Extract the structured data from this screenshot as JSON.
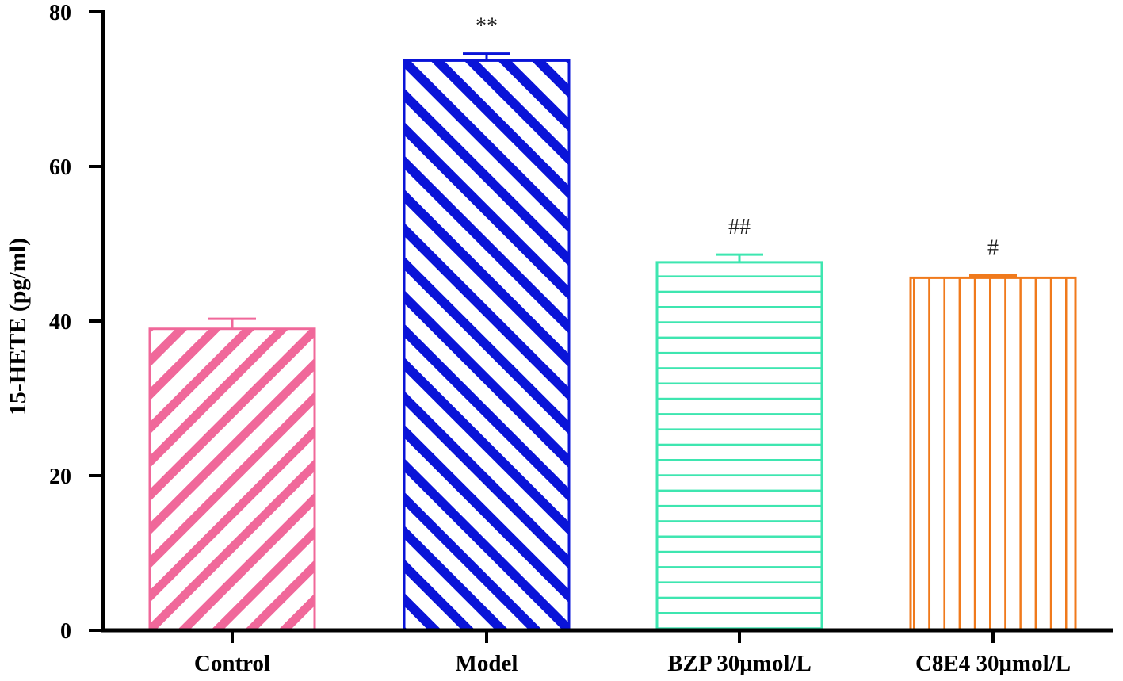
{
  "chart_data": {
    "type": "bar",
    "categories": [
      "Control",
      "Model",
      "BZP 30μmol/L",
      "C8E4 30μmol/L"
    ],
    "values": [
      39.0,
      73.7,
      47.6,
      45.6
    ],
    "errors": [
      1.3,
      0.9,
      1.0,
      0.3
    ],
    "annotations": [
      "",
      "**",
      "##",
      "#"
    ],
    "colors": [
      "#F0689A",
      "#0A14D8",
      "#3EE6B0",
      "#F07A1C"
    ],
    "fill_patterns": [
      "diagonal",
      "diagonal",
      "horizontal",
      "vertical"
    ],
    "ylabel": "15-HETE (pg/ml)",
    "xlabel": "",
    "ylim": [
      0,
      80
    ],
    "yticks": [
      0,
      20,
      40,
      60,
      80
    ],
    "grid": false,
    "legend": "none"
  }
}
